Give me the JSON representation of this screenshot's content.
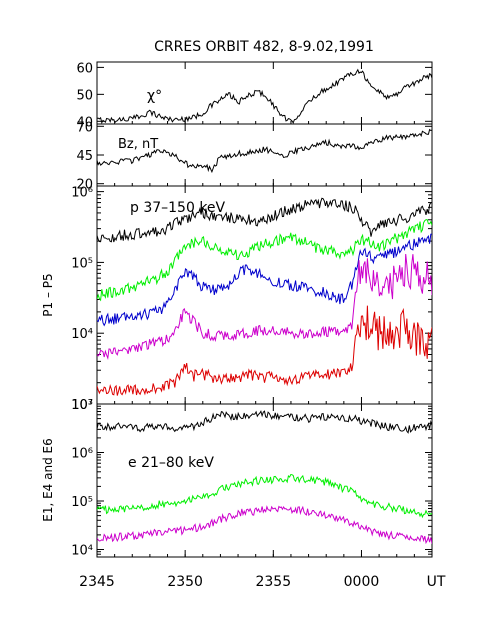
{
  "title": "CRRES ORBIT 482, 8-9.02,1991",
  "x_axis": {
    "tick_labels": [
      "2345",
      "2350",
      "2355",
      "0000",
      "UT"
    ],
    "ticks_minutes": [
      0,
      5,
      10,
      15
    ],
    "range_minutes": [
      0,
      19
    ],
    "unit": "UT"
  },
  "chart_data": [
    {
      "type": "line",
      "panel": "chi",
      "annotation": "χ°",
      "ylim": [
        39,
        62
      ],
      "yticks": [
        40,
        50,
        60
      ],
      "ytick_labels": [
        "40",
        "50",
        "60"
      ],
      "x_minutes": [
        0,
        1,
        2,
        2.5,
        3,
        3.5,
        4,
        4.5,
        5,
        5.5,
        6,
        6.5,
        7,
        7.5,
        8,
        8.5,
        9,
        9.5,
        10,
        10.5,
        11,
        11.5,
        12,
        12.5,
        13,
        13.5,
        14,
        14.5,
        15,
        15.5,
        16,
        16.5,
        17,
        17.5,
        18,
        18.5,
        19
      ],
      "series": [
        {
          "color": "#000000",
          "values": [
            40.5,
            40.5,
            41,
            42,
            43.5,
            42,
            41,
            40.5,
            41,
            41.5,
            43,
            46,
            48,
            50,
            47,
            49,
            51,
            50,
            46,
            42,
            39.5,
            43,
            47,
            50,
            52,
            54,
            56,
            58,
            59,
            53,
            51,
            49,
            50,
            53,
            54,
            56,
            57
          ]
        }
      ]
    },
    {
      "type": "line",
      "panel": "bz",
      "annotation": "Bz, nT",
      "ylim": [
        18,
        72
      ],
      "yticks": [
        20,
        45,
        70
      ],
      "ytick_labels": [
        "20",
        "45",
        "70"
      ],
      "x_minutes": [
        0,
        1,
        2,
        2.5,
        3,
        3.5,
        4,
        4.5,
        5,
        5.5,
        6,
        6.5,
        7,
        7.5,
        8,
        8.5,
        9,
        9.5,
        10,
        10.5,
        11,
        11.5,
        12,
        12.5,
        13,
        13.5,
        14,
        14.5,
        15,
        15.5,
        16,
        16.5,
        17,
        17.5,
        18,
        18.5,
        19
      ],
      "series": [
        {
          "color": "#000000",
          "values": [
            38,
            39,
            40,
            42,
            45,
            49,
            47,
            43,
            38,
            34,
            36,
            32,
            43,
            44,
            46,
            47,
            48,
            50,
            48,
            44,
            47,
            50,
            52,
            54,
            56,
            54,
            52,
            53,
            52,
            55,
            58,
            60,
            61,
            60,
            62,
            64,
            65
          ]
        }
      ]
    },
    {
      "type": "line",
      "panel": "protons",
      "yscale": "log",
      "ylim": [
        1000,
        1200000
      ],
      "yticks": [
        1000,
        10000,
        100000,
        1000000
      ],
      "ytick_labels": [
        "10³",
        "10⁴",
        "10⁵",
        "10⁶"
      ],
      "ylabel": "P1 – P5",
      "annotation": "p 37–150 keV",
      "x_minutes": [
        0,
        1,
        2,
        2.5,
        3,
        3.5,
        4,
        4.5,
        5,
        5.5,
        6,
        6.5,
        7,
        7.5,
        8,
        8.5,
        9,
        9.5,
        10,
        10.5,
        11,
        11.5,
        12,
        12.5,
        13,
        13.5,
        14,
        14.5,
        15,
        15.5,
        16,
        16.5,
        17,
        17.5,
        18,
        18.5,
        19
      ],
      "series": [
        {
          "color": "#000000",
          "values": [
            220000,
            230000,
            250000,
            260000,
            270000,
            280000,
            300000,
            360000,
            420000,
            460000,
            500000,
            460000,
            430000,
            420000,
            440000,
            400000,
            380000,
            400000,
            440000,
            500000,
            560000,
            620000,
            650000,
            680000,
            720000,
            690000,
            650000,
            600000,
            400000,
            260000,
            320000,
            360000,
            400000,
            420000,
            480000,
            520000,
            600000
          ]
        },
        {
          "color": "#00ee00",
          "values": [
            34000,
            38000,
            44000,
            50000,
            56000,
            62000,
            75000,
            110000,
            160000,
            190000,
            200000,
            175000,
            150000,
            140000,
            130000,
            140000,
            160000,
            180000,
            200000,
            220000,
            230000,
            210000,
            180000,
            160000,
            150000,
            140000,
            135000,
            150000,
            210000,
            190000,
            160000,
            190000,
            220000,
            260000,
            300000,
            330000,
            360000
          ]
        },
        {
          "color": "#0000cc",
          "values": [
            15000,
            16000,
            17000,
            18000,
            19000,
            21000,
            25000,
            45000,
            75000,
            60000,
            45000,
            40000,
            42000,
            50000,
            70000,
            80000,
            75000,
            60000,
            55000,
            52000,
            48000,
            45000,
            42000,
            40000,
            36000,
            32000,
            30000,
            50000,
            140000,
            120000,
            110000,
            130000,
            140000,
            160000,
            180000,
            200000,
            220000
          ]
        },
        {
          "color": "#cc00cc",
          "values": [
            5000,
            5500,
            6000,
            6500,
            7000,
            7500,
            8000,
            11000,
            20000,
            14000,
            10000,
            9500,
            9000,
            9000,
            9500,
            10000,
            10500,
            11000,
            11000,
            10500,
            10000,
            9500,
            9500,
            10000,
            10500,
            11000,
            11000,
            13000,
            80000,
            55000,
            45000,
            50000,
            60000,
            70000,
            80000,
            55000,
            60000
          ]
        },
        {
          "color": "#dd0000",
          "values": [
            1600,
            1500,
            1600,
            1500,
            1600,
            1700,
            1800,
            2100,
            3500,
            2500,
            2600,
            2400,
            2300,
            2200,
            2400,
            2600,
            2500,
            2400,
            2500,
            2300,
            2200,
            2300,
            2400,
            2500,
            2600,
            2700,
            2800,
            3500,
            18000,
            12000,
            10000,
            9000,
            11000,
            12000,
            9000,
            8000,
            7000
          ]
        }
      ]
    },
    {
      "type": "line",
      "panel": "electrons",
      "yscale": "log",
      "ylim": [
        7000,
        10000000
      ],
      "yticks": [
        10000,
        100000,
        1000000,
        10000000
      ],
      "ytick_labels": [
        "10⁴",
        "10⁵",
        "10⁶",
        "10⁷"
      ],
      "ylabel": "E1, E4 and E6",
      "annotation": "e 21–80 keV",
      "x_minutes": [
        0,
        1,
        2,
        2.5,
        3,
        3.5,
        4,
        4.5,
        5,
        5.5,
        6,
        6.5,
        7,
        7.5,
        8,
        8.5,
        9,
        9.5,
        10,
        10.5,
        11,
        11.5,
        12,
        12.5,
        13,
        13.5,
        14,
        14.5,
        15,
        15.5,
        16,
        16.5,
        17,
        17.5,
        18,
        18.5,
        19
      ],
      "series": [
        {
          "color": "#000000",
          "values": [
            3500000,
            3400000,
            3300000,
            3200000,
            3300000,
            3400000,
            3300000,
            3200000,
            3300000,
            3400000,
            4000000,
            5200000,
            6000000,
            5800000,
            5500000,
            6000000,
            5800000,
            6200000,
            5800000,
            5600000,
            5400000,
            5200000,
            5000000,
            5200000,
            5400000,
            5000000,
            5200000,
            5000000,
            4400000,
            4000000,
            3800000,
            3400000,
            3200000,
            3000000,
            3200000,
            3400000,
            3600000
          ]
        },
        {
          "color": "#00ee00",
          "values": [
            65000,
            68000,
            70000,
            75000,
            80000,
            85000,
            90000,
            95000,
            100000,
            110000,
            120000,
            140000,
            170000,
            190000,
            210000,
            240000,
            260000,
            270000,
            280000,
            290000,
            300000,
            290000,
            280000,
            260000,
            240000,
            210000,
            180000,
            150000,
            110000,
            90000,
            80000,
            75000,
            70000,
            65000,
            60000,
            55000,
            50000
          ]
        },
        {
          "color": "#cc00cc",
          "values": [
            17000,
            18000,
            19000,
            20000,
            21000,
            22000,
            23000,
            24000,
            25000,
            27000,
            30000,
            35000,
            42000,
            48000,
            55000,
            60000,
            62000,
            65000,
            67000,
            68000,
            66000,
            64000,
            60000,
            55000,
            50000,
            45000,
            40000,
            35000,
            28000,
            24000,
            22000,
            20000,
            19000,
            18000,
            17000,
            16000,
            15000
          ]
        }
      ]
    }
  ]
}
